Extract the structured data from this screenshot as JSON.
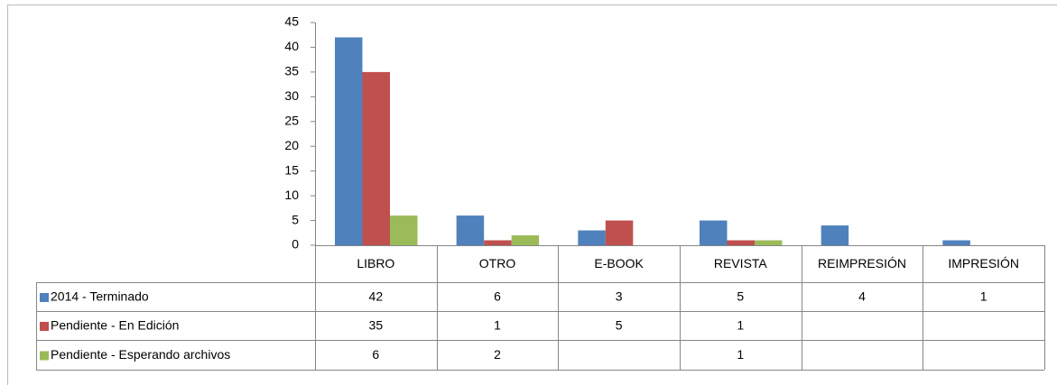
{
  "chart_data": {
    "type": "bar",
    "categories": [
      "LIBRO",
      "OTRO",
      "E-BOOK",
      "REVISTA",
      "REIMPRESIÓN",
      "IMPRESIÓN"
    ],
    "series": [
      {
        "name": "2014 - Terminado",
        "color": "#4f81bd",
        "values": [
          42,
          6,
          3,
          5,
          4,
          1
        ]
      },
      {
        "name": "Pendiente - En Edición",
        "color": "#c0504d",
        "values": [
          35,
          1,
          5,
          1,
          null,
          null
        ]
      },
      {
        "name": "Pendiente - Esperando archivos",
        "color": "#9bbb59",
        "values": [
          6,
          2,
          null,
          1,
          null,
          null
        ]
      }
    ],
    "ylim": [
      0,
      45
    ],
    "yticks": [
      0,
      5,
      10,
      15,
      20,
      25,
      30,
      35,
      40,
      45
    ],
    "grid": false
  }
}
